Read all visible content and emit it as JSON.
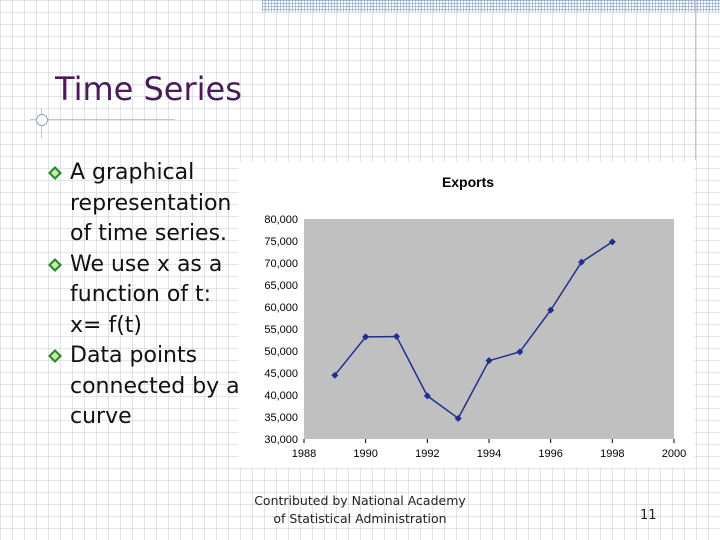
{
  "slide": {
    "title": "Time Series",
    "bullets": [
      "A graphical representation of time series.",
      "We use x as a function of t: x= f(t)",
      "Data points connected by a curve"
    ],
    "credit_line1": "Contributed by National Academy",
    "credit_line2": "of Statistical Administration",
    "page_number": "11"
  },
  "colors": {
    "title": "#4a1a59",
    "plot_bg": "#c0c0c0",
    "series": "#1f2f8f"
  },
  "chart_data": {
    "type": "line",
    "title": "Exports",
    "xlabel": "",
    "ylabel": "",
    "xlim": [
      1988,
      2000
    ],
    "ylim": [
      30000,
      80000
    ],
    "x_ticks": [
      1988,
      1990,
      1992,
      1994,
      1996,
      1998,
      2000
    ],
    "y_ticks": [
      30000,
      35000,
      40000,
      45000,
      50000,
      55000,
      60000,
      65000,
      70000,
      75000,
      80000
    ],
    "x_tick_labels": [
      "1988",
      "1990",
      "1992",
      "1994",
      "1996",
      "1998",
      "2000"
    ],
    "y_tick_labels": [
      "30,000",
      "35,000",
      "40,000",
      "45,000",
      "50,000",
      "55,000",
      "60,000",
      "65,000",
      "70,000",
      "75,000",
      "80,000"
    ],
    "grid": false,
    "legend": "none",
    "series": [
      {
        "x": [
          1989,
          1990,
          1991,
          1992,
          1993,
          1994,
          1995,
          1996,
          1997,
          1998
        ],
        "values": [
          44500,
          53200,
          53300,
          39800,
          34700,
          47800,
          49800,
          59300,
          70200,
          74800
        ]
      }
    ]
  }
}
